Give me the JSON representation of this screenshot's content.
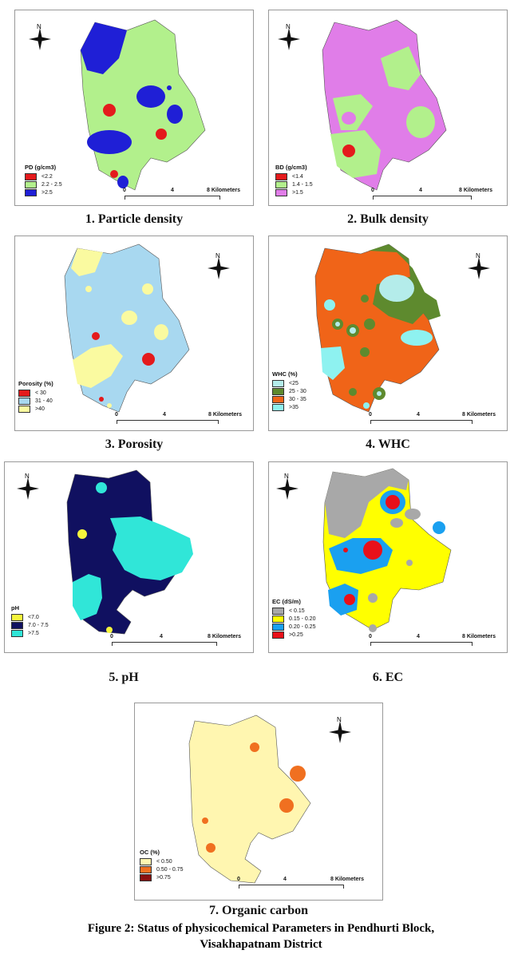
{
  "north_label": "N",
  "scale": {
    "zero": "0",
    "mid": "4",
    "end": "8 Kilometers"
  },
  "panels": [
    {
      "caption": "1. Particle density",
      "legend_title": "PD (g/cm3)",
      "legend": [
        {
          "label": "<2.2",
          "color": "#e41a1c"
        },
        {
          "label": "2.2 - 2.5",
          "color": "#b2f08c"
        },
        {
          "label": ">2.5",
          "color": "#1f1fd6"
        }
      ]
    },
    {
      "caption": "2. Bulk density",
      "legend_title": "BD (g/cm3)",
      "legend": [
        {
          "label": "<1.4",
          "color": "#e41a1c"
        },
        {
          "label": "1.4 - 1.5",
          "color": "#b2f08c"
        },
        {
          "label": ">1.5",
          "color": "#e07de8"
        }
      ]
    },
    {
      "caption": "3. Porosity",
      "legend_title": "Porosity (%)",
      "legend": [
        {
          "label": "< 30",
          "color": "#e41a1c"
        },
        {
          "label": "31 - 40",
          "color": "#a8d8f0"
        },
        {
          "label": ">40",
          "color": "#fafaa0"
        }
      ]
    },
    {
      "caption": "4. WHC",
      "legend_title": "WHC (%)",
      "legend": [
        {
          "label": "<25",
          "color": "#b4ecea"
        },
        {
          "label": "25 - 30",
          "color": "#5e8a2e"
        },
        {
          "label": "30 - 35",
          "color": "#f06418"
        },
        {
          "label": ">35",
          "color": "#8ef2f0"
        }
      ]
    },
    {
      "caption": "5. pH",
      "legend_title": "pH",
      "legend": [
        {
          "label": "<7.0",
          "color": "#f5f53c"
        },
        {
          "label": "7.0 - 7.5",
          "color": "#101060"
        },
        {
          "label": ">7.5",
          "color": "#30e6d8"
        }
      ]
    },
    {
      "caption": "6. EC",
      "legend_title": "EC (dS/m)",
      "legend": [
        {
          "label": "< 0.15",
          "color": "#a8a8a8"
        },
        {
          "label": "0.15 - 0.20",
          "color": "#ffff00"
        },
        {
          "label": "0.20 - 0.25",
          "color": "#1aa0f0"
        },
        {
          "label": ">0.25",
          "color": "#e8101a"
        }
      ]
    },
    {
      "caption": "7. Organic carbon",
      "legend_title": "OC (%)",
      "legend": [
        {
          "label": "< 0.50",
          "color": "#fff6b0"
        },
        {
          "label": "0.50 - 0.75",
          "color": "#f07020"
        },
        {
          "label": ">0.75",
          "color": "#8a1010"
        }
      ]
    }
  ],
  "figure_caption": {
    "line1": "Figure 2: Status of physicochemical Parameters in Pendhurti Block,",
    "line2": "Visakhapatnam District"
  }
}
